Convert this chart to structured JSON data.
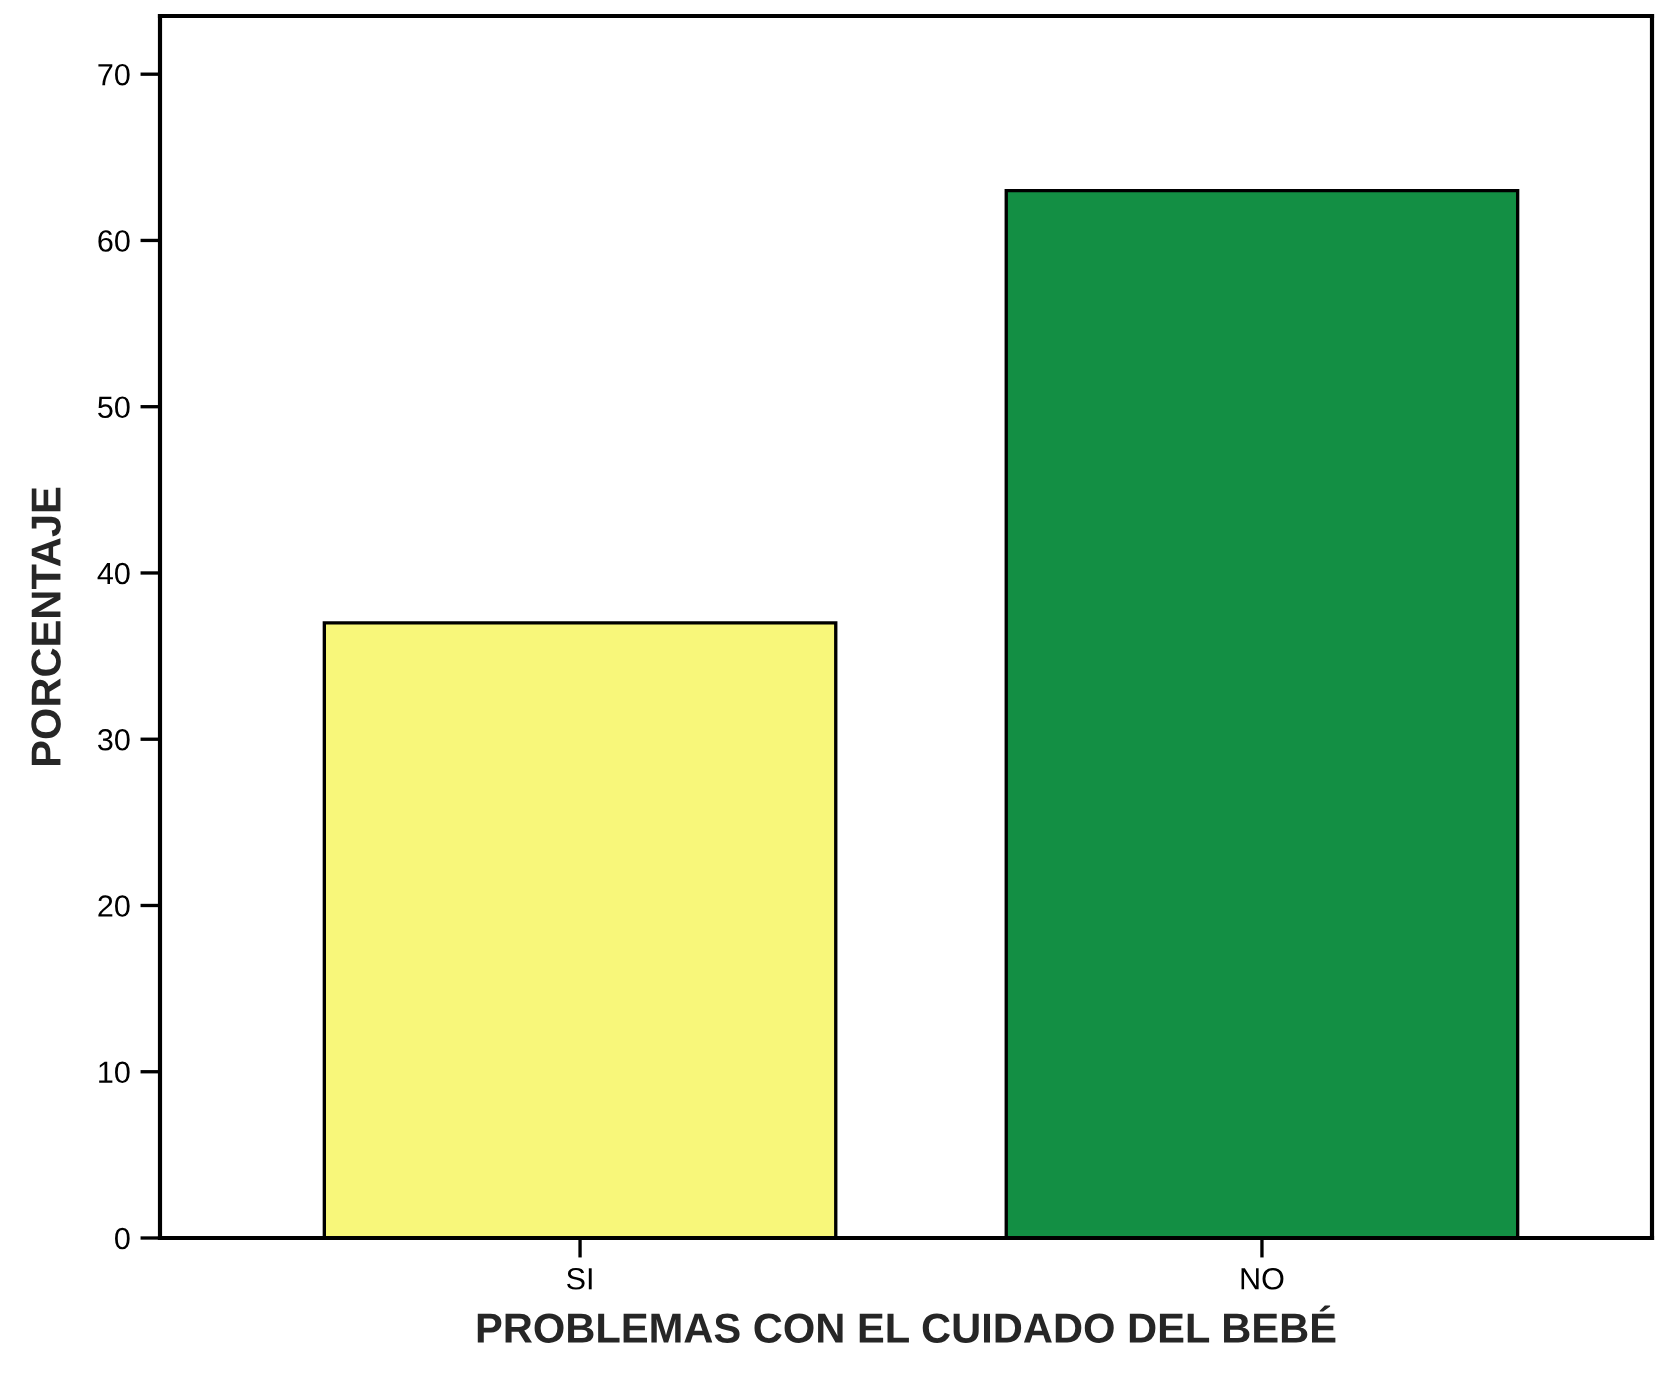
{
  "chart_data": {
    "type": "bar",
    "xlabel": "PROBLEMAS CON EL CUIDADO DEL BEBÉ",
    "ylabel": "PORCENTAJE",
    "categories": [
      "SI",
      "NO"
    ],
    "values": [
      37,
      63
    ],
    "colors": [
      "#f8f77a",
      "#138f44"
    ],
    "ylim": [
      0,
      73.5
    ],
    "yticks": [
      0,
      10,
      20,
      30,
      40,
      50,
      60,
      70
    ],
    "grid": false,
    "legend": false
  }
}
